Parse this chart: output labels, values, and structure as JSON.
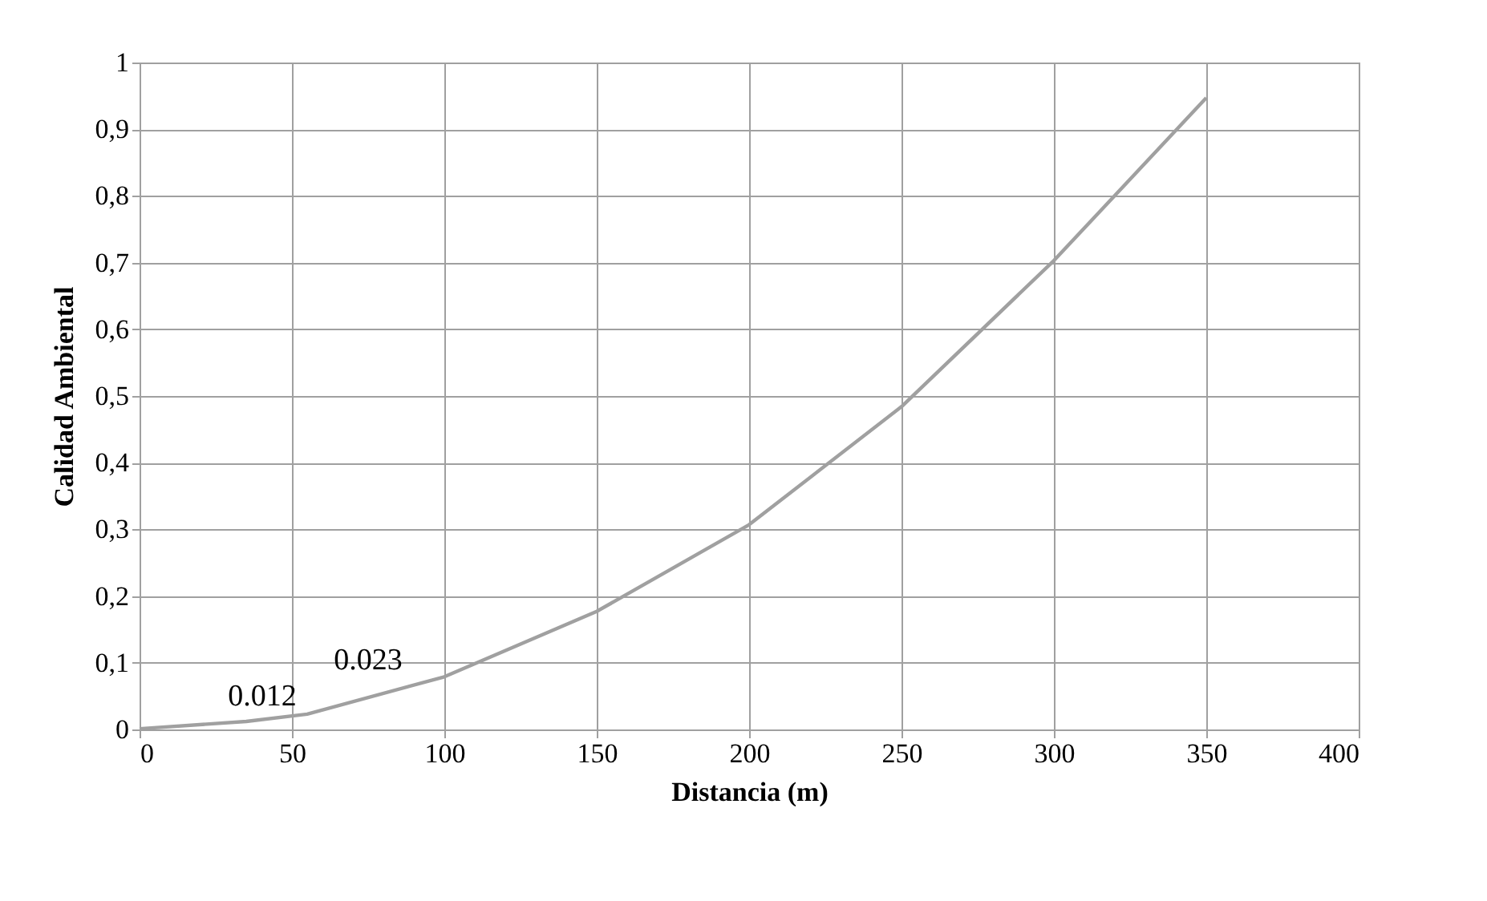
{
  "chart_data": {
    "type": "line",
    "xlabel": "Distancia (m)",
    "ylabel": "Calidad Ambiental",
    "x": [
      0,
      35,
      55,
      100,
      150,
      200,
      250,
      300,
      350
    ],
    "series": [
      {
        "color": "#a0a0a0",
        "values": [
          0.001,
          0.012,
          0.023,
          0.079,
          0.177,
          0.307,
          0.484,
          0.703,
          0.947
        ]
      }
    ],
    "xlim": [
      0,
      400
    ],
    "xticks": [
      0,
      50,
      100,
      150,
      200,
      250,
      300,
      350,
      400
    ],
    "ylim": [
      0,
      1
    ],
    "yticks": [
      {
        "value": 0,
        "label": "0"
      },
      {
        "value": 0.1,
        "label": "0,1"
      },
      {
        "value": 0.2,
        "label": "0,2"
      },
      {
        "value": 0.3,
        "label": "0,3"
      },
      {
        "value": 0.4,
        "label": "0,4"
      },
      {
        "value": 0.5,
        "label": "0,5"
      },
      {
        "value": 0.6,
        "label": "0,6"
      },
      {
        "value": 0.7,
        "label": "0,7"
      },
      {
        "value": 0.8,
        "label": "0,8"
      },
      {
        "value": 0.9,
        "label": "0,9"
      },
      {
        "value": 1,
        "label": "1"
      }
    ],
    "annotations": [
      {
        "text": "0.012",
        "x": 35,
        "y": 0.012
      },
      {
        "text": "0.023",
        "x": 55,
        "y": 0.023
      }
    ],
    "grid": true,
    "marker": "none",
    "line_style": "solid"
  }
}
